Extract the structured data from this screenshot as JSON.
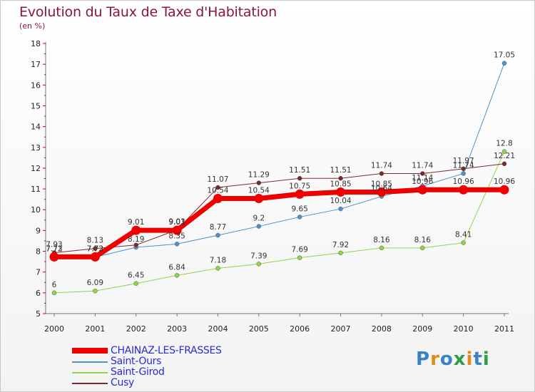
{
  "header": {
    "title": "Evolution du Taux de Taxe d'Habitation",
    "subtitle": "(en %)"
  },
  "logo": {
    "text": "Proxiti",
    "colors": [
      "#3b82c4",
      "#e08a1e",
      "#3b82c4",
      "#2f9e44",
      "#e08a1e",
      "#3b82c4",
      "#2f9e44"
    ]
  },
  "chart_data": {
    "type": "line",
    "title": "Evolution du Taux de Taxe d'Habitation",
    "subtitle": "(en %)",
    "xlabel": "",
    "ylabel": "",
    "ylim": [
      5,
      18
    ],
    "yticks": [
      5,
      6,
      7,
      8,
      9,
      10,
      11,
      12,
      13,
      14,
      15,
      16,
      17,
      18
    ],
    "x": [
      "2000",
      "2001",
      "2002",
      "2003",
      "2004",
      "2005",
      "2006",
      "2007",
      "2008",
      "2009",
      "2010",
      "2011"
    ],
    "grid": "none",
    "legend_position": "bottom-left",
    "series": [
      {
        "name": "CHAINAZ-LES-FRASSES",
        "color": "#ee0000",
        "width": 7,
        "values": [
          7.73,
          7.73,
          9.01,
          9.01,
          10.54,
          10.54,
          10.75,
          10.85,
          10.85,
          10.96,
          10.96,
          10.96
        ],
        "labels": [
          "7.73",
          "7.73",
          "9.01",
          "9.01",
          "10.54",
          "10.54",
          "10.75",
          "10.85",
          "10.85",
          "10.96",
          "10.96",
          "10.96"
        ]
      },
      {
        "name": "Saint-Ours",
        "color": "#4f90cd",
        "width": 1,
        "values": [
          7.72,
          7.72,
          8.19,
          8.35,
          8.77,
          9.2,
          9.65,
          10.04,
          10.64,
          11.14,
          11.74,
          17.05
        ],
        "labels": [
          "7.72",
          "7.72",
          "8.19",
          "8.35",
          "8.77",
          "9.2",
          "9.65",
          "10.04",
          "10.64",
          "11.14",
          "11.74",
          "17.05"
        ]
      },
      {
        "name": "Saint-Girod",
        "color": "#8dd64a",
        "width": 1,
        "values": [
          6,
          6.09,
          6.45,
          6.84,
          7.18,
          7.39,
          7.69,
          7.92,
          8.16,
          8.16,
          8.41,
          12.8
        ],
        "labels": [
          "6",
          "6.09",
          "6.45",
          "6.84",
          "7.18",
          "7.39",
          "7.69",
          "7.92",
          "8.16",
          "8.16",
          "8.41",
          "12.8"
        ]
      },
      {
        "name": "Cusy",
        "color": "#7a2a2a",
        "width": 1,
        "values": [
          7.93,
          8.13,
          8.3,
          9.03,
          11.07,
          11.29,
          11.51,
          11.51,
          11.74,
          11.74,
          11.97,
          12.21
        ],
        "labels": [
          "7.93",
          "8.13",
          "",
          "9.03",
          "11.07",
          "11.29",
          "11.51",
          "11.51",
          "11.74",
          "11.74",
          "11.97",
          "12.21"
        ]
      }
    ]
  }
}
